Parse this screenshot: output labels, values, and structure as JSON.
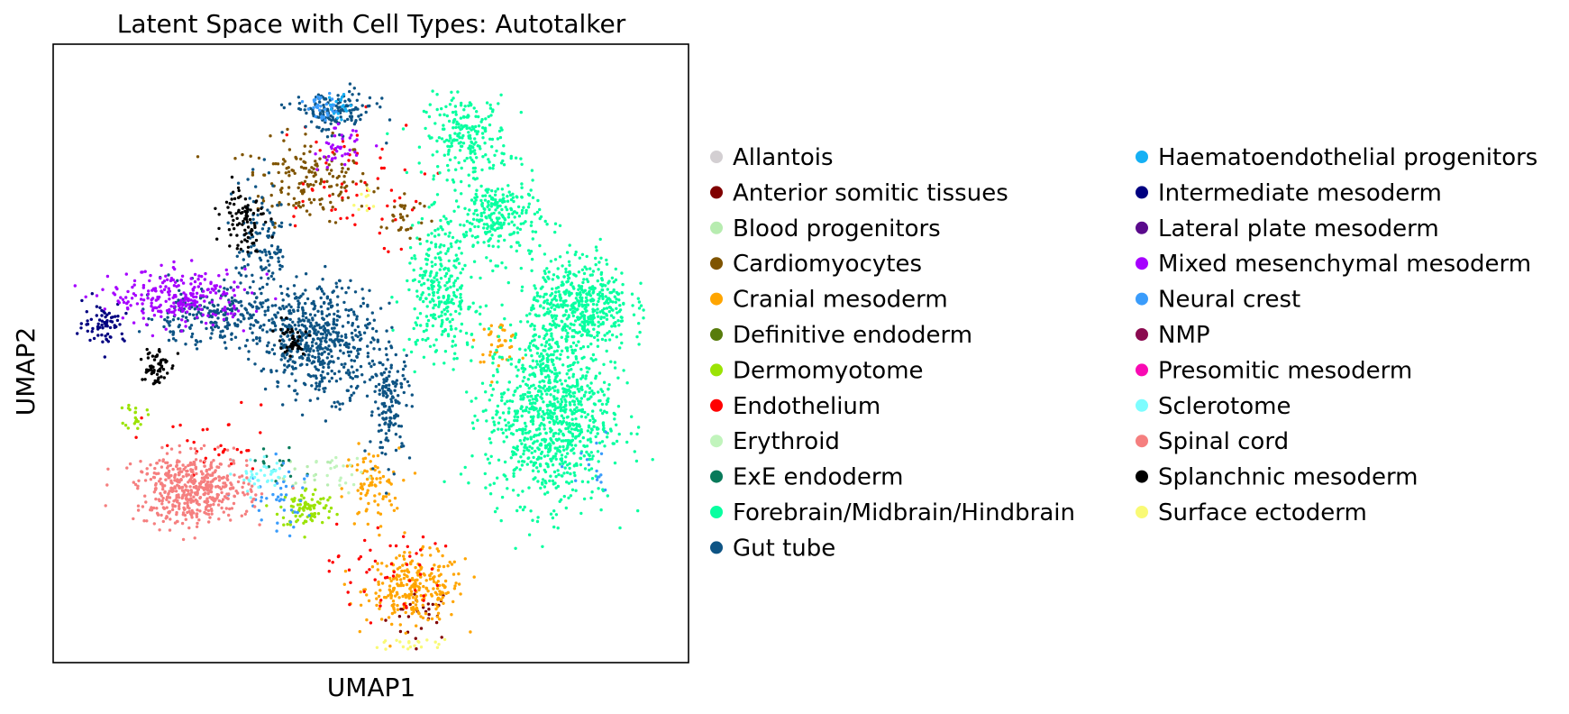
{
  "chart_data": {
    "type": "scatter",
    "title": "Latent Space with Cell Types: Autotalker",
    "xlabel": "UMAP1",
    "ylabel": "UMAP2",
    "xlim": [
      0,
      100
    ],
    "ylim": [
      0,
      100
    ],
    "grid": false,
    "axis_ticks": false,
    "legend_position": "right",
    "legend_columns": 2,
    "series": [
      {
        "name": "Allantois",
        "color": "#d3cfd2",
        "regions": []
      },
      {
        "name": "Anterior somitic tissues",
        "color": "#800000",
        "regions": [
          [
            58,
            8,
            5,
            4,
            30
          ]
        ]
      },
      {
        "name": "Blood progenitors",
        "color": "#b7ecb0",
        "regions": [
          [
            40,
            30,
            4,
            3,
            15
          ]
        ]
      },
      {
        "name": "Cardiomyocytes",
        "color": "#7f5400",
        "regions": [
          [
            40,
            78,
            9,
            6,
            160
          ],
          [
            55,
            72,
            3,
            4,
            30
          ]
        ]
      },
      {
        "name": "Cranial mesoderm",
        "color": "#ffa500",
        "regions": [
          [
            57,
            12,
            7,
            5,
            260
          ],
          [
            70,
            52,
            3,
            3,
            40
          ],
          [
            50,
            28,
            4,
            6,
            80
          ]
        ]
      },
      {
        "name": "Definitive endoderm",
        "color": "#587c0c",
        "regions": []
      },
      {
        "name": "Dermomyotome",
        "color": "#9be305",
        "regions": [
          [
            40,
            25,
            4,
            3,
            90
          ],
          [
            13,
            40,
            1.5,
            2,
            20
          ]
        ]
      },
      {
        "name": "Endothelium",
        "color": "#ff0000",
        "regions": [
          [
            45,
            77,
            12,
            10,
            60
          ],
          [
            52,
            15,
            8,
            7,
            50
          ],
          [
            25,
            35,
            10,
            6,
            30
          ]
        ]
      },
      {
        "name": "Erythroid",
        "color": "#c1f4bc",
        "regions": [
          [
            46,
            30,
            4,
            3,
            20
          ]
        ]
      },
      {
        "name": "ExE endoderm",
        "color": "#087a5a",
        "regions": [
          [
            35,
            32,
            4,
            3,
            15
          ]
        ]
      },
      {
        "name": "Forebrain/Midbrain/Hindbrain",
        "color": "#08ffa0",
        "regions": [
          [
            65,
            85,
            6,
            6,
            220
          ],
          [
            70,
            72,
            6,
            6,
            250
          ],
          [
            78,
            40,
            9,
            13,
            950
          ],
          [
            83,
            58,
            7,
            7,
            500
          ],
          [
            61,
            60,
            5,
            10,
            300
          ]
        ]
      },
      {
        "name": "Gut tube",
        "color": "#0e5484",
        "regions": [
          [
            44,
            89,
            6,
            3,
            150
          ],
          [
            33,
            67,
            4,
            10,
            130
          ],
          [
            42,
            52,
            8,
            8,
            550
          ],
          [
            25,
            56,
            10,
            4,
            250
          ],
          [
            53,
            42,
            3,
            8,
            150
          ]
        ]
      },
      {
        "name": "Haematoendothelial progenitors",
        "color": "#15b0f4",
        "regions": [
          [
            45,
            90,
            2,
            2,
            20
          ]
        ]
      },
      {
        "name": "Intermediate mesoderm",
        "color": "#000080",
        "regions": [
          [
            8,
            55,
            3,
            3,
            70
          ]
        ]
      },
      {
        "name": "Lateral plate mesoderm",
        "color": "#5a0a8c",
        "regions": []
      },
      {
        "name": "Mixed mesenchymal mesoderm",
        "color": "#a600ff",
        "regions": [
          [
            20,
            59,
            10,
            4,
            250
          ],
          [
            45,
            83,
            3,
            3,
            40
          ]
        ]
      },
      {
        "name": "Neural crest",
        "color": "#3a9cfb",
        "regions": [
          [
            42,
            90,
            2,
            2,
            30
          ],
          [
            36,
            26,
            6,
            5,
            40
          ],
          [
            85,
            30,
            3,
            4,
            15
          ]
        ]
      },
      {
        "name": "NMP",
        "color": "#8b0a50",
        "regions": []
      },
      {
        "name": "Presomitic mesoderm",
        "color": "#f90ab3",
        "regions": []
      },
      {
        "name": "Sclerotome",
        "color": "#7dfdff",
        "regions": [
          [
            33,
            30,
            4,
            3,
            40
          ]
        ]
      },
      {
        "name": "Spinal cord",
        "color": "#f57f7f",
        "regions": [
          [
            22,
            28,
            8,
            5,
            500
          ]
        ]
      },
      {
        "name": "Splanchnic mesoderm",
        "color": "#000000",
        "regions": [
          [
            30,
            72,
            3,
            5,
            90
          ],
          [
            16,
            48,
            2,
            3,
            60
          ],
          [
            37,
            52,
            3,
            3,
            40
          ]
        ]
      },
      {
        "name": "Surface ectoderm",
        "color": "#f9fa75",
        "regions": [
          [
            49,
            75,
            2,
            2,
            10
          ],
          [
            57,
            3,
            6,
            1,
            20
          ]
        ]
      }
    ]
  }
}
